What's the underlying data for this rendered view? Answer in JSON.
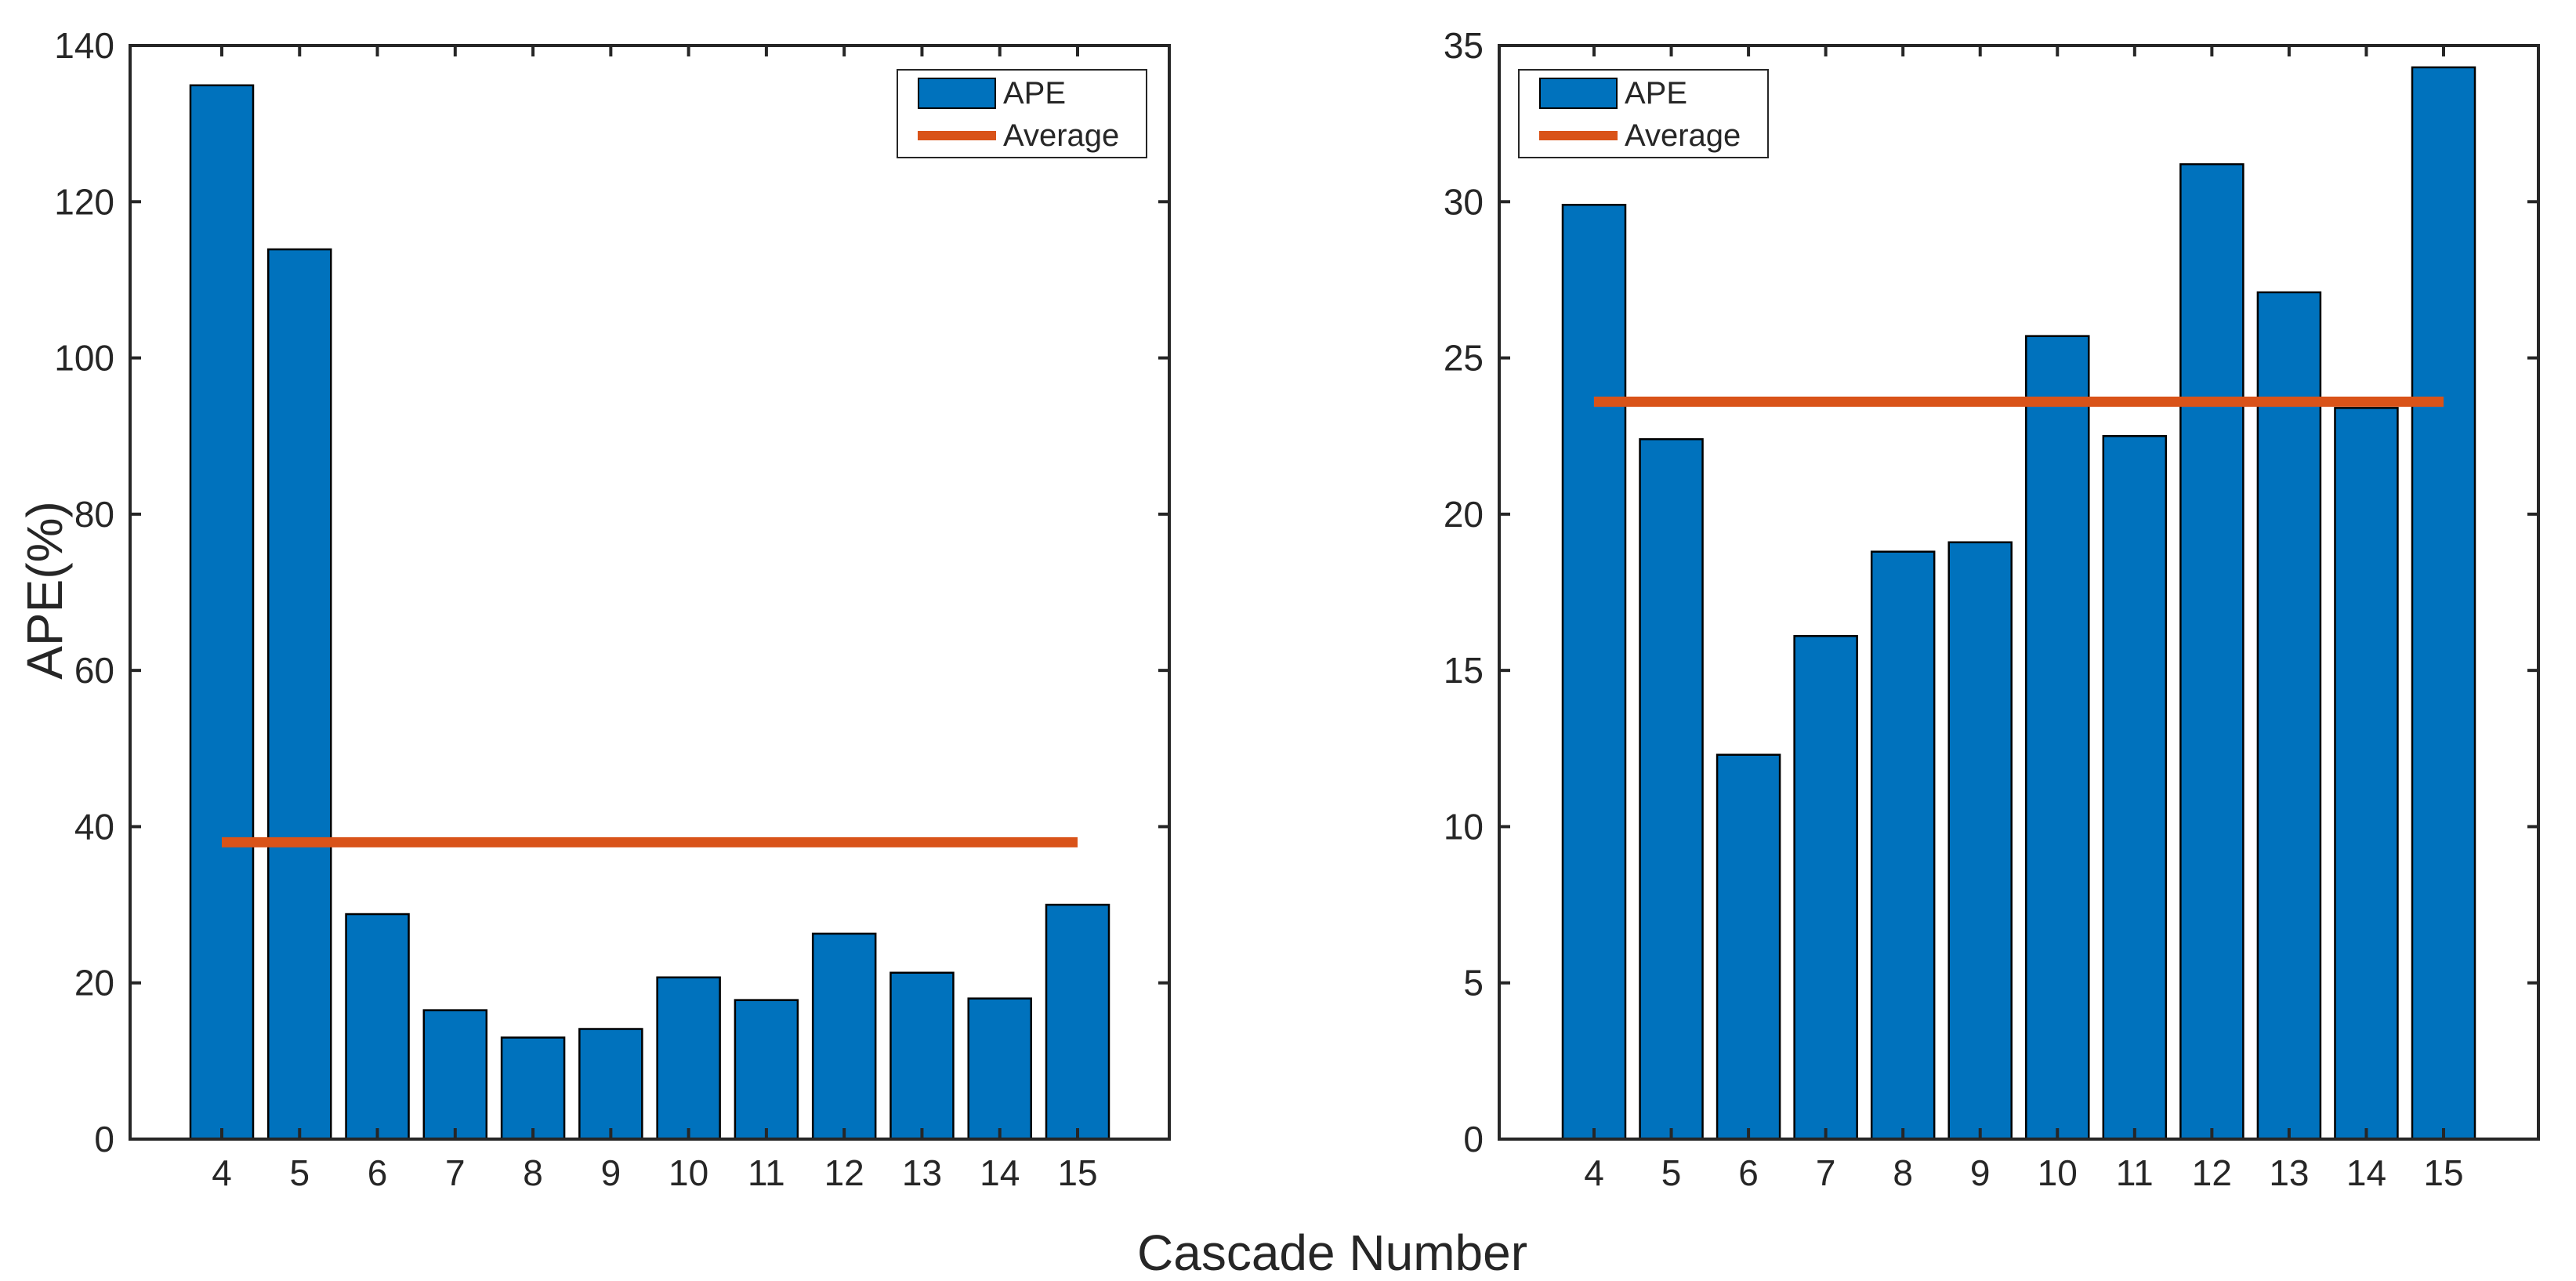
{
  "figure": {
    "background_color": "#ffffff",
    "shared_xlabel": "Cascade Number"
  },
  "colors": {
    "bar_fill": "#0072BD",
    "bar_edge": "#000000",
    "average_line": "#D95319",
    "axis": "#262626",
    "text": "#262626"
  },
  "chart_data": [
    {
      "type": "bar",
      "title": "",
      "xlabel": "Cascade Number",
      "ylabel": "APE(%)",
      "categories": [
        "4",
        "5",
        "6",
        "7",
        "8",
        "9",
        "10",
        "11",
        "12",
        "13",
        "14",
        "15"
      ],
      "values": [
        134.9,
        113.9,
        28.8,
        16.5,
        13.0,
        14.1,
        20.7,
        17.8,
        26.3,
        21.3,
        18.0,
        30.0
      ],
      "average": 38.0,
      "ylim": [
        0,
        140
      ],
      "yticks": [
        0,
        20,
        40,
        60,
        80,
        100,
        120,
        140
      ],
      "grid": false,
      "box": true,
      "series_label": "APE",
      "average_label": "Average",
      "legend_position": "top-right"
    },
    {
      "type": "bar",
      "title": "",
      "xlabel": "Cascade Number",
      "ylabel": "",
      "categories": [
        "4",
        "5",
        "6",
        "7",
        "8",
        "9",
        "10",
        "11",
        "12",
        "13",
        "14",
        "15"
      ],
      "values": [
        29.9,
        22.4,
        12.3,
        16.1,
        18.8,
        19.1,
        25.7,
        22.5,
        31.2,
        27.1,
        23.4,
        34.3
      ],
      "average": 23.6,
      "ylim": [
        0,
        35
      ],
      "yticks": [
        0,
        5,
        10,
        15,
        20,
        25,
        30,
        35
      ],
      "grid": false,
      "box": true,
      "series_label": "APE",
      "average_label": "Average",
      "legend_position": "top-left"
    }
  ]
}
